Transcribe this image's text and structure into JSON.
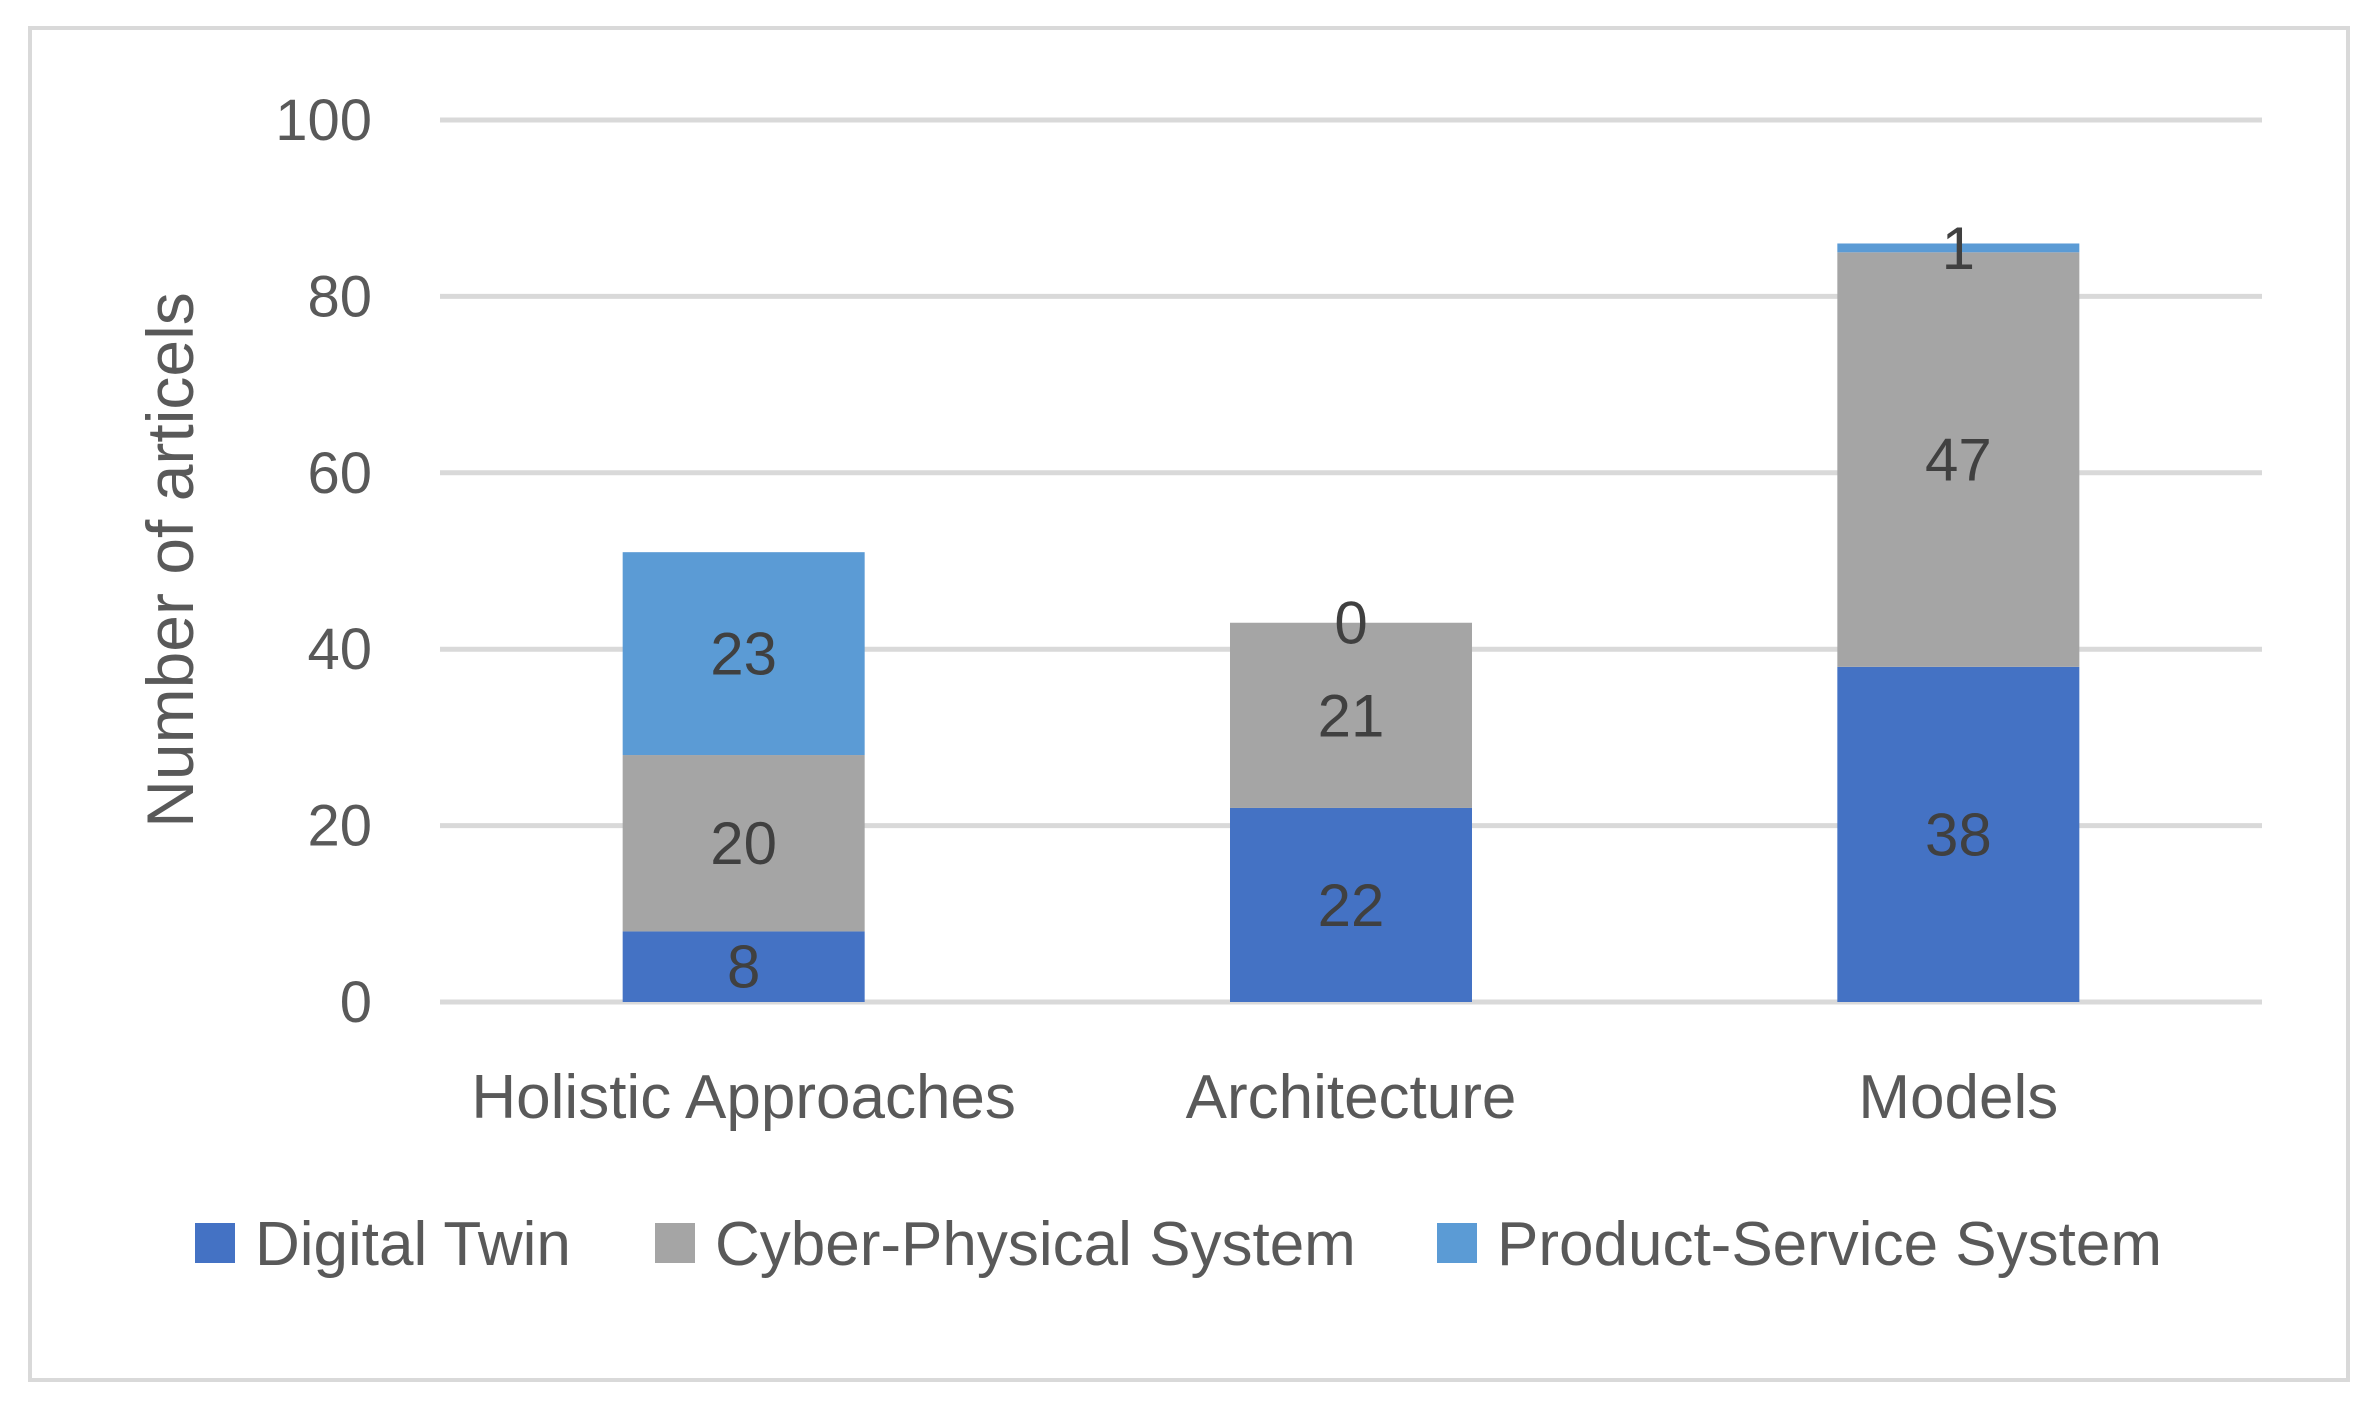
{
  "chart_data": {
    "type": "bar",
    "stacked": true,
    "categories": [
      "Holistic Approaches",
      "Architecture",
      "Models"
    ],
    "series": [
      {
        "name": "Digital Twin",
        "values": [
          8,
          22,
          38
        ],
        "color": "#4472C4"
      },
      {
        "name": "Cyber-Physical System",
        "values": [
          20,
          21,
          47
        ],
        "color": "#A5A5A5"
      },
      {
        "name": "Product-Service System",
        "values": [
          23,
          0,
          1
        ],
        "color": "#5B9BD5"
      }
    ],
    "title": "",
    "xlabel": "",
    "ylabel": "Number of articels",
    "ylim": [
      0,
      100
    ],
    "yticks": [
      "0",
      "20",
      "40",
      "60",
      "80",
      "100"
    ],
    "grid": true,
    "legend_position": "bottom",
    "border_color": "#D9D9D9",
    "grid_color": "#D9D9D9"
  }
}
